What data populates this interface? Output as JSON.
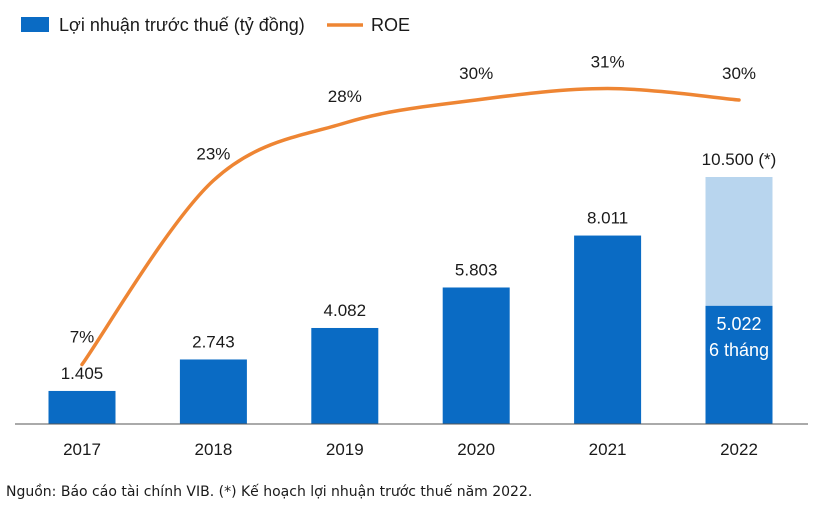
{
  "chart_data": {
    "type": "bar",
    "categories": [
      "2017",
      "2018",
      "2019",
      "2020",
      "2021",
      "2022"
    ],
    "series": [
      {
        "name": "Lợi nhuận trước thuế (tỷ đồng)",
        "kind": "bar",
        "color": "#0a6bc4",
        "values": [
          1405,
          2743,
          4082,
          5803,
          8011,
          5022
        ],
        "labels": [
          "1.405",
          "2.743",
          "4.082",
          "5.803",
          "8.011",
          "5.022"
        ]
      },
      {
        "name": "Kế hoạch 2022",
        "kind": "bar-plan",
        "color": "#b8d5ee",
        "category": "2022",
        "value": 10500,
        "label": "10.500 (*)"
      },
      {
        "name": "ROE",
        "kind": "line",
        "color": "#ee8533",
        "values": [
          7,
          23,
          28,
          30,
          31,
          30
        ],
        "labels": [
          "7%",
          "23%",
          "28%",
          "30%",
          "31%",
          "30%"
        ]
      }
    ],
    "inbar_note": "6 tháng",
    "ylim": [
      0,
      10500
    ],
    "roe_ylim": [
      0,
      35
    ],
    "legend_position": "top-left"
  },
  "source_note": "Nguồn: Báo cáo tài chính VIB. (*) Kế hoạch lợi nhuận trước thuế năm 2022."
}
